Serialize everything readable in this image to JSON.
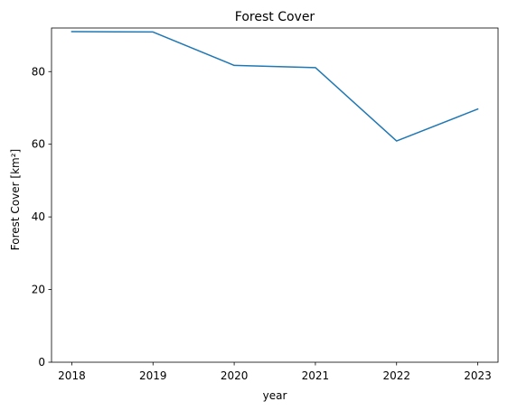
{
  "chart_data": {
    "type": "line",
    "title": "Forest Cover",
    "xlabel": "year",
    "ylabel": "Forest Cover [km²]",
    "x": [
      2018,
      2019,
      2020,
      2021,
      2022,
      2023
    ],
    "xticks": [
      "2018",
      "2019",
      "2020",
      "2021",
      "2022",
      "2023"
    ],
    "yticks": [
      0,
      20,
      40,
      60,
      80
    ],
    "xlim": [
      2017.75,
      2023.25
    ],
    "ylim": [
      0,
      92
    ],
    "grid": false,
    "series": [
      {
        "values": [
          91.0,
          90.9,
          81.7,
          81.1,
          60.9,
          69.7
        ],
        "color": "#1f77b4"
      }
    ]
  }
}
